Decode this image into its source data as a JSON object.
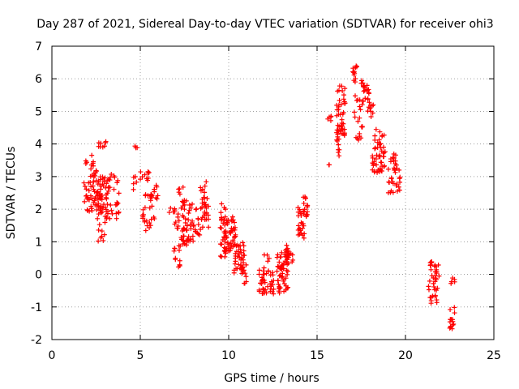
{
  "chart_data": {
    "type": "scatter",
    "title": "Day 287 of 2021, Sidereal Day-to-day VTEC variation (SDTVAR) for receiver ohi3",
    "xlabel": "GPS time / hours",
    "ylabel": "SDTVAR / TECUs",
    "xlim": [
      0,
      25
    ],
    "ylim": [
      -2,
      7
    ],
    "xticks": [
      "0",
      "5",
      "10",
      "15",
      "20",
      "25"
    ],
    "yticks": [
      "-2",
      "-1",
      "0",
      "1",
      "2",
      "3",
      "4",
      "5",
      "6",
      "7"
    ],
    "grid": true,
    "marker": "+",
    "series_color": "#ff0000",
    "clusters": [
      {
        "x0": 1.8,
        "x1": 2.4,
        "y0": 1.9,
        "y1": 3.7,
        "n": 40
      },
      {
        "x0": 2.4,
        "x1": 3.0,
        "y0": 2.0,
        "y1": 3.2,
        "n": 45
      },
      {
        "x0": 2.5,
        "x1": 3.1,
        "y0": 1.0,
        "y1": 2.0,
        "n": 18
      },
      {
        "x0": 2.6,
        "x1": 3.1,
        "y0": 3.9,
        "y1": 4.1,
        "n": 8
      },
      {
        "x0": 3.0,
        "x1": 3.8,
        "y0": 1.7,
        "y1": 3.1,
        "n": 40
      },
      {
        "x0": 4.6,
        "x1": 4.8,
        "y0": 2.5,
        "y1": 3.0,
        "n": 5
      },
      {
        "x0": 4.7,
        "x1": 4.9,
        "y0": 3.85,
        "y1": 3.95,
        "n": 3
      },
      {
        "x0": 5.0,
        "x1": 5.5,
        "y0": 2.8,
        "y1": 3.2,
        "n": 10
      },
      {
        "x0": 5.1,
        "x1": 5.8,
        "y0": 1.3,
        "y1": 2.5,
        "n": 25
      },
      {
        "x0": 5.5,
        "x1": 6.0,
        "y0": 2.3,
        "y1": 2.8,
        "n": 12
      },
      {
        "x0": 6.6,
        "x1": 7.2,
        "y0": 1.4,
        "y1": 2.1,
        "n": 14
      },
      {
        "x0": 6.9,
        "x1": 7.3,
        "y0": 0.2,
        "y1": 1.0,
        "n": 12
      },
      {
        "x0": 7.1,
        "x1": 7.5,
        "y0": 2.4,
        "y1": 2.7,
        "n": 5
      },
      {
        "x0": 7.3,
        "x1": 8.5,
        "y0": 1.0,
        "y1": 2.3,
        "n": 55
      },
      {
        "x0": 7.4,
        "x1": 8.0,
        "y0": 0.9,
        "y1": 1.2,
        "n": 12
      },
      {
        "x0": 8.4,
        "x1": 8.9,
        "y0": 1.3,
        "y1": 3.0,
        "n": 30
      },
      {
        "x0": 9.5,
        "x1": 9.9,
        "y0": 0.5,
        "y1": 2.2,
        "n": 30
      },
      {
        "x0": 9.8,
        "x1": 10.4,
        "y0": 0.6,
        "y1": 1.8,
        "n": 45
      },
      {
        "x0": 10.3,
        "x1": 10.9,
        "y0": 0.0,
        "y1": 1.0,
        "n": 35
      },
      {
        "x0": 10.6,
        "x1": 11.0,
        "y0": -0.3,
        "y1": 0.3,
        "n": 12
      },
      {
        "x0": 11.7,
        "x1": 12.6,
        "y0": -0.6,
        "y1": 0.2,
        "n": 40
      },
      {
        "x0": 12.0,
        "x1": 12.3,
        "y0": 0.4,
        "y1": 0.6,
        "n": 4
      },
      {
        "x0": 12.7,
        "x1": 13.4,
        "y0": -0.6,
        "y1": 0.8,
        "n": 55
      },
      {
        "x0": 13.2,
        "x1": 13.7,
        "y0": 0.3,
        "y1": 0.9,
        "n": 20
      },
      {
        "x0": 13.9,
        "x1": 14.3,
        "y0": 1.1,
        "y1": 2.1,
        "n": 25
      },
      {
        "x0": 14.2,
        "x1": 14.5,
        "y0": 1.6,
        "y1": 2.4,
        "n": 15
      },
      {
        "x0": 15.6,
        "x1": 15.8,
        "y0": 4.7,
        "y1": 4.9,
        "n": 5
      },
      {
        "x0": 15.6,
        "x1": 15.7,
        "y0": 3.3,
        "y1": 3.4,
        "n": 2
      },
      {
        "x0": 16.1,
        "x1": 16.3,
        "y0": 3.5,
        "y1": 4.2,
        "n": 8
      },
      {
        "x0": 16.1,
        "x1": 16.6,
        "y0": 4.2,
        "y1": 5.8,
        "n": 45
      },
      {
        "x0": 17.0,
        "x1": 17.3,
        "y0": 5.9,
        "y1": 6.4,
        "n": 12
      },
      {
        "x0": 17.1,
        "x1": 17.6,
        "y0": 4.1,
        "y1": 5.5,
        "n": 20
      },
      {
        "x0": 17.5,
        "x1": 18.0,
        "y0": 5.3,
        "y1": 6.0,
        "n": 20
      },
      {
        "x0": 17.8,
        "x1": 18.2,
        "y0": 4.8,
        "y1": 5.3,
        "n": 10
      },
      {
        "x0": 18.1,
        "x1": 18.8,
        "y0": 3.1,
        "y1": 4.5,
        "n": 40
      },
      {
        "x0": 18.5,
        "x1": 19.0,
        "y0": 3.2,
        "y1": 3.8,
        "n": 10
      },
      {
        "x0": 19.0,
        "x1": 19.7,
        "y0": 2.5,
        "y1": 3.7,
        "n": 35
      },
      {
        "x0": 21.3,
        "x1": 21.9,
        "y0": -0.9,
        "y1": 0.4,
        "n": 40
      },
      {
        "x0": 22.5,
        "x1": 22.8,
        "y0": -0.3,
        "y1": -0.1,
        "n": 5
      },
      {
        "x0": 22.5,
        "x1": 22.8,
        "y0": -1.7,
        "y1": -1.0,
        "n": 15
      }
    ]
  }
}
